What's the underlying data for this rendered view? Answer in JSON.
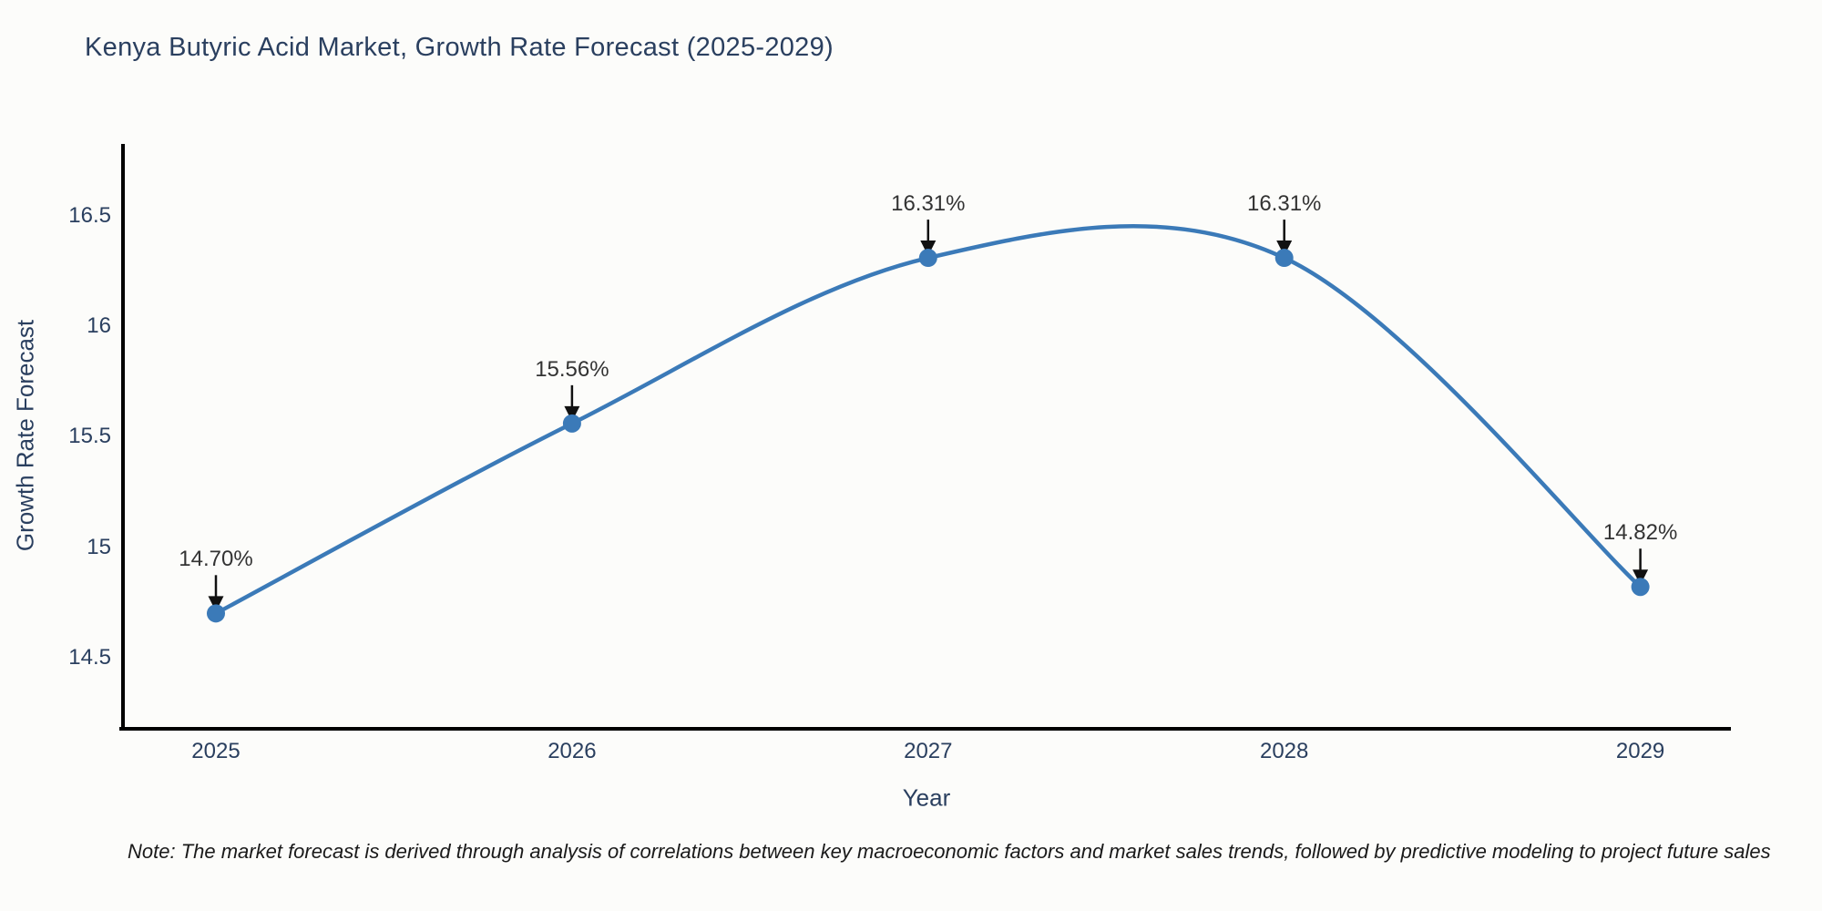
{
  "title": "Kenya Butyric Acid Market, Growth Rate Forecast (2025-2029)",
  "note": "Note: The market forecast is derived through analysis of correlations between key macroeconomic factors and market sales trends, followed by predictive modeling to project future sales",
  "colors": {
    "line": "#3b7ab8",
    "marker": "#3b7ab8",
    "axis": "#000000",
    "heading_text": "#2a3f5f",
    "tick_text": "#2a3f5f",
    "point_label_text": "#333333",
    "arrow": "#111111",
    "note_text": "#1a1a1a",
    "background": "#fcfcfa"
  },
  "chart_data": {
    "type": "line",
    "title": "Kenya Butyric Acid Market, Growth Rate Forecast (2025-2029)",
    "xlabel": "Year",
    "ylabel": "Growth Rate Forecast",
    "x": [
      2025,
      2026,
      2027,
      2028,
      2029
    ],
    "y": [
      14.7,
      15.56,
      16.31,
      16.31,
      14.82
    ],
    "point_labels": [
      "14.70%",
      "15.56%",
      "16.31%",
      "16.31%",
      "14.82%"
    ],
    "x_tick_labels": [
      "2025",
      "2026",
      "2027",
      "2028",
      "2029"
    ],
    "y_tick_values": [
      14.5,
      15.0,
      15.5,
      16.0,
      16.5
    ],
    "y_tick_labels": [
      "14.5",
      "15",
      "15.5",
      "16",
      "16.5"
    ],
    "ylim_ticks": [
      14.5,
      16.5
    ],
    "line_shape": "spline",
    "markers": true,
    "grid": false,
    "legend": "none",
    "annotation_style": "value labels with downward arrows onto each point"
  }
}
